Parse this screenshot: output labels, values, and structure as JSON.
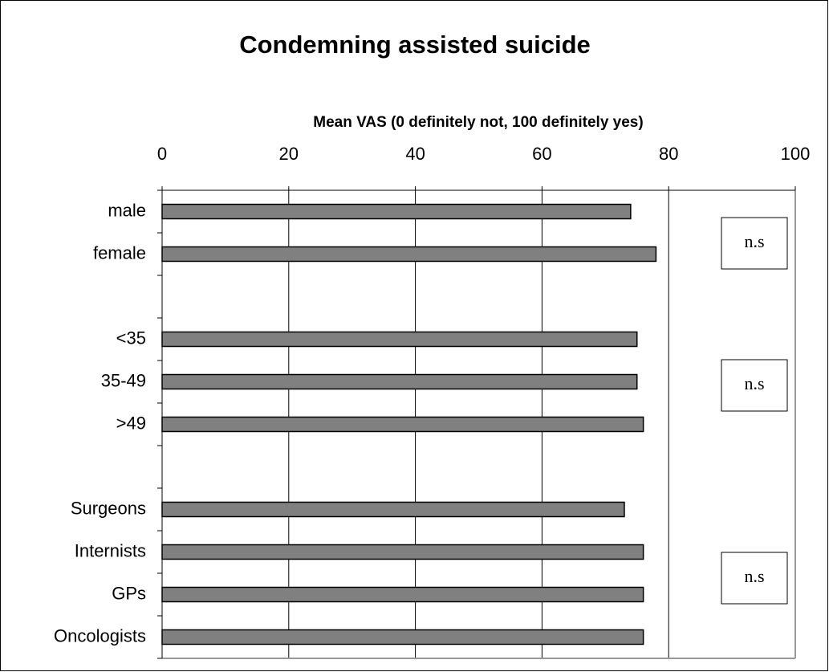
{
  "chart_data": {
    "type": "bar",
    "orientation": "horizontal",
    "title": "Condemning assisted suicide",
    "x_label": "Mean VAS (0 definitely not, 100 definitely yes)",
    "categories": [
      "male",
      "female",
      null,
      "<35",
      "35-49",
      ">49",
      null,
      "Surgeons",
      "Internists",
      "GPs",
      "Oncologists"
    ],
    "values": [
      74,
      78,
      null,
      75,
      75,
      76,
      null,
      73,
      76,
      76,
      76
    ],
    "color": "#808080",
    "xlim": [
      0,
      100
    ],
    "xticks": [
      0,
      20,
      40,
      60,
      80,
      100
    ],
    "grid": true,
    "annotations": [
      "n.s",
      "n.s",
      "n.s"
    ]
  }
}
